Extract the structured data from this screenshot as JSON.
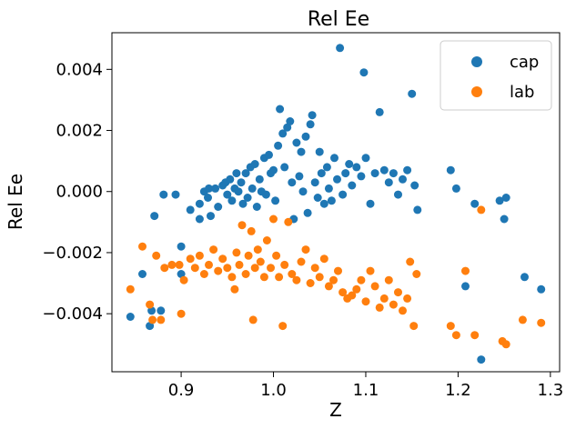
{
  "chart_data": {
    "type": "scatter",
    "title": "Rel Ee",
    "xlabel": "Z",
    "ylabel": "Rel Ee",
    "xlim": [
      0.825,
      1.31
    ],
    "ylim": [
      -0.0059,
      0.0052
    ],
    "xticks": [
      0.9,
      1.0,
      1.1,
      1.2,
      1.3
    ],
    "xtick_labels": [
      "0.9",
      "1.0",
      "1.1",
      "1.2",
      "1.3"
    ],
    "yticks": [
      -0.004,
      -0.002,
      0.0,
      0.002,
      0.004
    ],
    "ytick_labels": [
      "−0.004",
      "−0.002",
      "0.000",
      "0.002",
      "0.004"
    ],
    "grid": false,
    "legend": "top-right",
    "series": [
      {
        "name": "cap",
        "color": "#1f77b4",
        "points": [
          [
            0.845,
            -0.0041
          ],
          [
            0.858,
            -0.0027
          ],
          [
            0.866,
            -0.0044
          ],
          [
            0.868,
            -0.0039
          ],
          [
            0.871,
            -0.0008
          ],
          [
            0.878,
            -0.0039
          ],
          [
            0.881,
            -0.0001
          ],
          [
            0.894,
            -0.0001
          ],
          [
            0.9,
            -0.0018
          ],
          [
            0.9,
            -0.0027
          ],
          [
            0.91,
            -0.0006
          ],
          [
            0.92,
            -0.0004
          ],
          [
            0.92,
            -0.0009
          ],
          [
            0.925,
            0.0
          ],
          [
            0.929,
            -0.0002
          ],
          [
            0.93,
            0.0001
          ],
          [
            0.932,
            -0.0008
          ],
          [
            0.937,
            0.0001
          ],
          [
            0.94,
            -0.0005
          ],
          [
            0.945,
            0.0002
          ],
          [
            0.948,
            0.0003
          ],
          [
            0.95,
            -0.0001
          ],
          [
            0.953,
            0.0004
          ],
          [
            0.955,
            -0.0003
          ],
          [
            0.958,
            0.0001
          ],
          [
            0.96,
            0.0006
          ],
          [
            0.962,
            0.0
          ],
          [
            0.965,
            0.0003
          ],
          [
            0.967,
            -0.0004
          ],
          [
            0.97,
            0.0006
          ],
          [
            0.972,
            -0.0002
          ],
          [
            0.975,
            0.0008
          ],
          [
            0.977,
            0.0001
          ],
          [
            0.98,
            0.0009
          ],
          [
            0.982,
            -0.0005
          ],
          [
            0.985,
            0.0004
          ],
          [
            0.987,
            0.0
          ],
          [
            0.99,
            0.0011
          ],
          [
            0.992,
            -0.0001
          ],
          [
            0.995,
            0.0012
          ],
          [
            0.997,
            0.0006
          ],
          [
            1.0,
            0.0007
          ],
          [
            1.002,
            -0.0003
          ],
          [
            1.005,
            0.0015
          ],
          [
            1.007,
            0.0027
          ],
          [
            1.01,
            0.0019
          ],
          [
            1.012,
            0.0008
          ],
          [
            1.015,
            0.0021
          ],
          [
            1.018,
            0.0023
          ],
          [
            1.02,
            0.0003
          ],
          [
            1.022,
            -0.0009
          ],
          [
            1.025,
            0.0016
          ],
          [
            1.028,
            0.0005
          ],
          [
            1.03,
            0.0013
          ],
          [
            1.032,
            0.0
          ],
          [
            1.035,
            0.0018
          ],
          [
            1.037,
            -0.0007
          ],
          [
            1.04,
            0.0022
          ],
          [
            1.042,
            0.0025
          ],
          [
            1.045,
            0.0003
          ],
          [
            1.048,
            -0.0002
          ],
          [
            1.05,
            0.0013
          ],
          [
            1.052,
            0.0006
          ],
          [
            1.055,
            -0.0004
          ],
          [
            1.058,
            0.0008
          ],
          [
            1.06,
            0.0001
          ],
          [
            1.063,
            -0.0003
          ],
          [
            1.066,
            0.0011
          ],
          [
            1.069,
            0.0004
          ],
          [
            1.072,
            0.0047
          ],
          [
            1.075,
            -0.0001
          ],
          [
            1.078,
            0.0006
          ],
          [
            1.082,
            0.0009
          ],
          [
            1.085,
            0.0002
          ],
          [
            1.09,
            0.0008
          ],
          [
            1.095,
            0.0005
          ],
          [
            1.098,
            0.0039
          ],
          [
            1.1,
            0.0011
          ],
          [
            1.105,
            -0.0004
          ],
          [
            1.11,
            0.0006
          ],
          [
            1.115,
            0.0026
          ],
          [
            1.12,
            0.0007
          ],
          [
            1.125,
            0.0003
          ],
          [
            1.13,
            0.0006
          ],
          [
            1.135,
            -0.0001
          ],
          [
            1.14,
            0.0004
          ],
          [
            1.145,
            0.0007
          ],
          [
            1.15,
            0.0032
          ],
          [
            1.153,
            0.0002
          ],
          [
            1.156,
            -0.0006
          ],
          [
            1.192,
            0.0007
          ],
          [
            1.198,
            0.0001
          ],
          [
            1.208,
            -0.0031
          ],
          [
            1.218,
            -0.0004
          ],
          [
            1.225,
            -0.0055
          ],
          [
            1.245,
            -0.0003
          ],
          [
            1.25,
            -0.0009
          ],
          [
            1.252,
            -0.0002
          ],
          [
            1.272,
            -0.0028
          ],
          [
            1.29,
            -0.0032
          ]
        ]
      },
      {
        "name": "lab",
        "color": "#ff7f0e",
        "points": [
          [
            0.845,
            -0.0032
          ],
          [
            0.858,
            -0.0018
          ],
          [
            0.866,
            -0.0037
          ],
          [
            0.869,
            -0.0042
          ],
          [
            0.873,
            -0.0021
          ],
          [
            0.878,
            -0.0042
          ],
          [
            0.882,
            -0.0025
          ],
          [
            0.89,
            -0.0024
          ],
          [
            0.898,
            -0.0024
          ],
          [
            0.9,
            -0.004
          ],
          [
            0.903,
            -0.0029
          ],
          [
            0.91,
            -0.0022
          ],
          [
            0.915,
            -0.0025
          ],
          [
            0.92,
            -0.0021
          ],
          [
            0.925,
            -0.0027
          ],
          [
            0.93,
            -0.0024
          ],
          [
            0.935,
            -0.0019
          ],
          [
            0.94,
            -0.0026
          ],
          [
            0.945,
            -0.0022
          ],
          [
            0.95,
            -0.0025
          ],
          [
            0.955,
            -0.0028
          ],
          [
            0.958,
            -0.0032
          ],
          [
            0.96,
            -0.002
          ],
          [
            0.963,
            -0.0024
          ],
          [
            0.966,
            -0.0011
          ],
          [
            0.97,
            -0.0027
          ],
          [
            0.973,
            -0.0021
          ],
          [
            0.976,
            -0.0013
          ],
          [
            0.978,
            -0.0042
          ],
          [
            0.98,
            -0.0025
          ],
          [
            0.983,
            -0.0019
          ],
          [
            0.986,
            -0.0023
          ],
          [
            0.99,
            -0.0028
          ],
          [
            0.993,
            -0.0016
          ],
          [
            0.997,
            -0.0025
          ],
          [
            1.0,
            -0.0009
          ],
          [
            1.003,
            -0.0021
          ],
          [
            1.006,
            -0.0028
          ],
          [
            1.01,
            -0.0044
          ],
          [
            1.012,
            -0.0024
          ],
          [
            1.016,
            -0.001
          ],
          [
            1.02,
            -0.0027
          ],
          [
            1.025,
            -0.0029
          ],
          [
            1.03,
            -0.0023
          ],
          [
            1.035,
            -0.0019
          ],
          [
            1.04,
            -0.003
          ],
          [
            1.045,
            -0.0025
          ],
          [
            1.05,
            -0.0028
          ],
          [
            1.055,
            -0.0022
          ],
          [
            1.06,
            -0.0031
          ],
          [
            1.065,
            -0.0029
          ],
          [
            1.07,
            -0.0026
          ],
          [
            1.075,
            -0.0033
          ],
          [
            1.08,
            -0.0035
          ],
          [
            1.085,
            -0.0034
          ],
          [
            1.09,
            -0.0032
          ],
          [
            1.095,
            -0.0029
          ],
          [
            1.1,
            -0.0036
          ],
          [
            1.105,
            -0.0026
          ],
          [
            1.11,
            -0.0031
          ],
          [
            1.115,
            -0.0038
          ],
          [
            1.12,
            -0.0035
          ],
          [
            1.125,
            -0.0029
          ],
          [
            1.13,
            -0.0037
          ],
          [
            1.135,
            -0.0033
          ],
          [
            1.14,
            -0.0039
          ],
          [
            1.145,
            -0.0035
          ],
          [
            1.148,
            -0.0023
          ],
          [
            1.152,
            -0.0044
          ],
          [
            1.155,
            -0.0027
          ],
          [
            1.192,
            -0.0044
          ],
          [
            1.198,
            -0.0047
          ],
          [
            1.208,
            -0.0026
          ],
          [
            1.218,
            -0.0047
          ],
          [
            1.225,
            -0.0006
          ],
          [
            1.248,
            -0.0049
          ],
          [
            1.252,
            -0.005
          ],
          [
            1.27,
            -0.0042
          ],
          [
            1.29,
            -0.0043
          ]
        ]
      }
    ]
  }
}
